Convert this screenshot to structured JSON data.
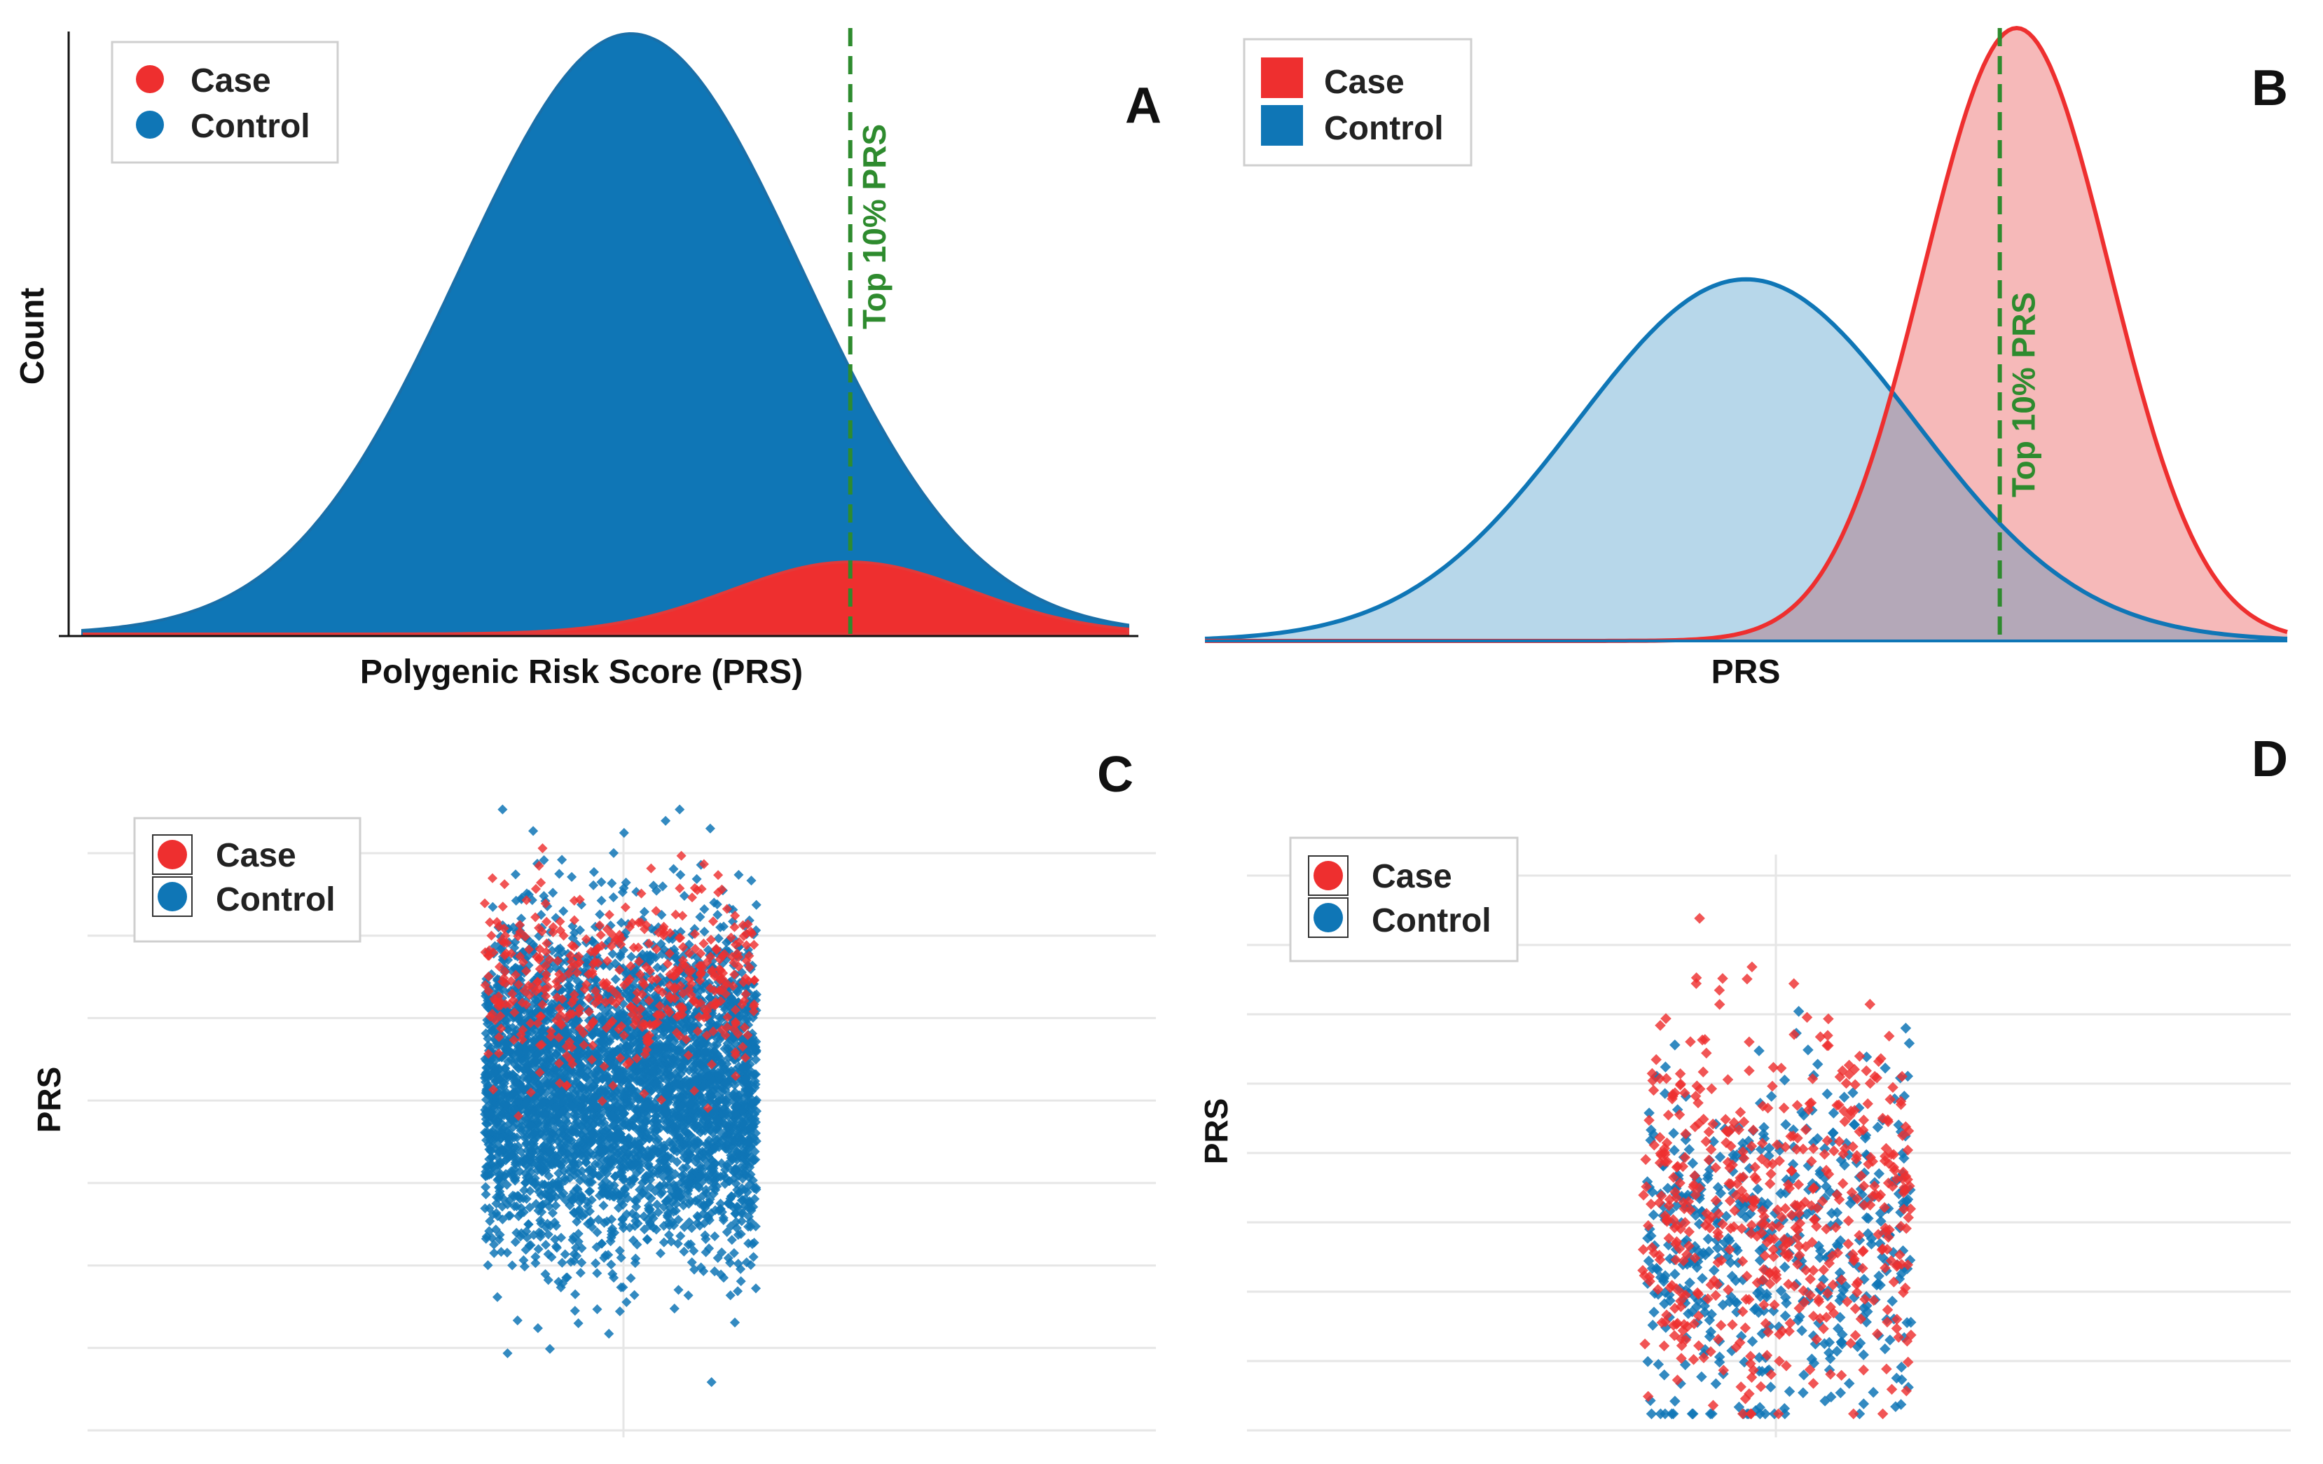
{
  "colors": {
    "case": "#ee2f2f",
    "control": "#0f76b6",
    "case_fill": "#f6b5b5",
    "control_fill": "#b3d5e9",
    "overlap_fill": "#b4a8b8",
    "ref_line": "#2e8b2e",
    "grid": "#e6e6e6"
  },
  "chart_data": [
    {
      "panel": "A",
      "type": "area",
      "title": "",
      "xlabel": "Polygenic Risk Score (PRS)",
      "ylabel": "Count",
      "legend": {
        "position": "top-left",
        "marker": "circle",
        "entries": [
          "Case",
          "Control"
        ]
      },
      "series": [
        {
          "name": "Control",
          "distribution": "normal",
          "mean": 0.0,
          "sd": 1.0,
          "relative_peak": 1.0
        },
        {
          "name": "Case",
          "distribution": "normal",
          "mean": 1.28,
          "sd": 0.7,
          "relative_peak": 0.12
        }
      ],
      "xlim": [
        -3.2,
        2.9
      ],
      "reference_line": {
        "x": 1.28,
        "label": "Top 10% PRS",
        "style": "dashed"
      }
    },
    {
      "panel": "B",
      "type": "area",
      "title": "",
      "xlabel": "PRS",
      "ylabel": "",
      "legend": {
        "position": "top-left",
        "marker": "square",
        "entries": [
          "Case",
          "Control"
        ]
      },
      "series": [
        {
          "name": "Control",
          "distribution": "normal",
          "mean": 0.0,
          "sd": 1.0,
          "relative_peak": 0.59
        },
        {
          "name": "Case",
          "distribution": "normal",
          "mean": 1.6,
          "sd": 0.55,
          "relative_peak": 1.0
        }
      ],
      "xlim": [
        -3.2,
        3.2
      ],
      "reference_line": {
        "x": 1.5,
        "label": "Top 10% PRS",
        "style": "dashed"
      }
    },
    {
      "panel": "C",
      "type": "scatter",
      "title": "",
      "xlabel": "",
      "ylabel": "PRS",
      "legend": {
        "position": "top-left",
        "marker": "circle-boxed",
        "entries": [
          "Case",
          "Control"
        ]
      },
      "series": [
        {
          "name": "Control",
          "n_points": 4000,
          "mean": 0.0,
          "sd": 1.0
        },
        {
          "name": "Case",
          "n_points": 450,
          "mean": 1.3,
          "sd": 0.55
        }
      ],
      "ylim": [
        -4.0,
        3.6
      ],
      "grid": true
    },
    {
      "panel": "D",
      "type": "scatter",
      "title": "",
      "xlabel": "",
      "ylabel": "PRS",
      "legend": {
        "position": "top-left",
        "marker": "circle-boxed",
        "entries": [
          "Case",
          "Control"
        ]
      },
      "series": [
        {
          "name": "Control",
          "n_points": 520,
          "mean": 0.0,
          "sd": 0.95
        },
        {
          "name": "Case",
          "n_points": 520,
          "mean": 0.35,
          "sd": 1.05
        }
      ],
      "ylim": [
        -1.85,
        4.6
      ],
      "grid": true
    }
  ]
}
